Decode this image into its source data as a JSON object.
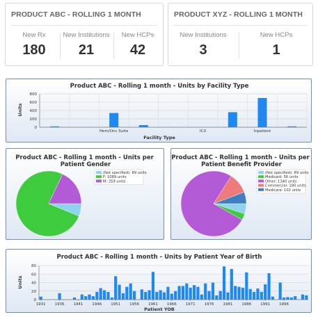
{
  "kpi_abc": {
    "title": "PRODUCT ABC - ROLLING 1 MONTH",
    "metrics": [
      {
        "label": "New Rx",
        "value": "180"
      },
      {
        "label": "New Institutions",
        "value": "21"
      },
      {
        "label": "New HCPs",
        "value": "42"
      }
    ]
  },
  "kpi_xyz": {
    "title": "PRODUCT XYZ - ROLLING 1 MONTH",
    "metrics": [
      {
        "label": "New Institutions",
        "value": "3"
      },
      {
        "label": "New HCPs",
        "value": "1"
      }
    ]
  },
  "chart_data": [
    {
      "type": "bar",
      "title": "Product ABC - Rolling 1 month - Units by Facility Type",
      "xlabel": "Facility Type",
      "ylabel": "Units",
      "ylim": [
        0,
        800
      ],
      "yticks": [
        0,
        200,
        400,
        600,
        800
      ],
      "categories": [
        "",
        "",
        "Hem/Onc Suite",
        "",
        "",
        "ICU",
        "",
        "Inpatient",
        ""
      ],
      "values": [
        20,
        0,
        340,
        50,
        0,
        0,
        360,
        700,
        20
      ],
      "grid": true,
      "color": "#1f88f2"
    },
    {
      "type": "pie",
      "title": "Product ABC - Rolling 1 month - Units per Patient Gender",
      "legend": "top-right",
      "slices": [
        {
          "label": "(Not specified): 89 units",
          "value": 89,
          "color": "#8fd3ec"
        },
        {
          "label": "F: 1089 units",
          "value": 1089,
          "color": "#3ecb3e"
        },
        {
          "label": "M: 259 units",
          "value": 259,
          "color": "#b55ad6"
        }
      ]
    },
    {
      "type": "pie",
      "title": "Product ABC - Rolling 1 month - Units per Patient Benefit Provider",
      "legend": "top-right",
      "slices": [
        {
          "label": "(Not specified): 89 units",
          "value": 89,
          "color": "#8fd3ec"
        },
        {
          "label": "Medicaid: 56 units",
          "value": 56,
          "color": "#3ecb3e"
        },
        {
          "label": "Other: 1340 units",
          "value": 1340,
          "color": "#b55ad6"
        },
        {
          "label": "Commercial: 180 units",
          "value": 180,
          "color": "#ee7b7b"
        },
        {
          "label": "Medicare: 102 units",
          "value": 102,
          "color": "#3f7fbf"
        }
      ]
    },
    {
      "type": "bar",
      "title": "Product ABC - Rolling 1 month - Units by Patient Year of Birth",
      "xlabel": "Patient YOB",
      "ylabel": "Units",
      "ylim": [
        0,
        80
      ],
      "yticks": [
        0,
        20,
        40,
        60,
        80
      ],
      "xstart": 1931,
      "xend": 2000,
      "xticks": [
        "1931",
        "1936",
        "1941",
        "1946",
        "1951",
        "1956",
        "1961",
        "1966",
        "1971",
        "1976",
        "1981",
        "1986",
        "1991",
        "1996"
      ],
      "values": [
        7,
        0,
        0,
        0,
        0,
        15,
        0,
        0,
        0,
        5,
        0,
        12,
        8,
        12,
        8,
        18,
        27,
        22,
        18,
        5,
        55,
        35,
        15,
        30,
        38,
        20,
        0,
        24,
        18,
        22,
        65,
        18,
        22,
        17,
        30,
        14,
        20,
        32,
        32,
        38,
        28,
        34,
        30,
        12,
        38,
        20,
        40,
        10,
        20,
        78,
        17,
        72,
        32,
        30,
        28,
        64,
        25,
        18,
        26,
        18,
        36,
        62,
        7,
        0,
        40,
        5,
        6,
        5,
        8,
        0,
        12,
        10
      ],
      "grid": true,
      "color": "#1f88f2"
    }
  ]
}
